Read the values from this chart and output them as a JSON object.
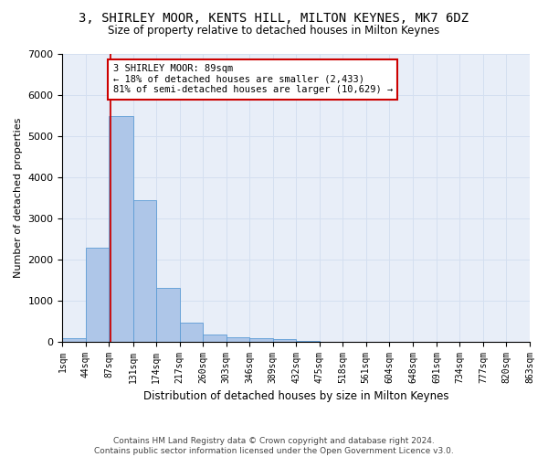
{
  "title": "3, SHIRLEY MOOR, KENTS HILL, MILTON KEYNES, MK7 6DZ",
  "subtitle": "Size of property relative to detached houses in Milton Keynes",
  "xlabel": "Distribution of detached houses by size in Milton Keynes",
  "ylabel": "Number of detached properties",
  "bar_color": "#aec6e8",
  "bar_edge_color": "#5b9bd5",
  "grid_color": "#d4dff0",
  "background_color": "#e8eef8",
  "bins": [
    1,
    44,
    87,
    131,
    174,
    217,
    260,
    303,
    346,
    389,
    432,
    475,
    518,
    561,
    604,
    648,
    691,
    734,
    777,
    820,
    863
  ],
  "values": [
    75,
    2280,
    5480,
    3450,
    1310,
    470,
    165,
    100,
    75,
    50,
    20,
    0,
    0,
    0,
    0,
    0,
    0,
    0,
    0,
    0
  ],
  "tick_labels": [
    "1sqm",
    "44sqm",
    "87sqm",
    "131sqm",
    "174sqm",
    "217sqm",
    "260sqm",
    "303sqm",
    "346sqm",
    "389sqm",
    "432sqm",
    "475sqm",
    "518sqm",
    "561sqm",
    "604sqm",
    "648sqm",
    "691sqm",
    "734sqm",
    "777sqm",
    "820sqm",
    "863sqm"
  ],
  "vline_x": 89,
  "vline_color": "#cc0000",
  "annotation_text": "3 SHIRLEY MOOR: 89sqm\n← 18% of detached houses are smaller (2,433)\n81% of semi-detached houses are larger (10,629) →",
  "annotation_box_color": "#ffffff",
  "annotation_box_edge": "#cc0000",
  "footer_text": "Contains HM Land Registry data © Crown copyright and database right 2024.\nContains public sector information licensed under the Open Government Licence v3.0.",
  "ylim": [
    0,
    7000
  ],
  "yticks": [
    0,
    1000,
    2000,
    3000,
    4000,
    5000,
    6000,
    7000
  ],
  "figsize": [
    6.0,
    5.0
  ],
  "dpi": 100,
  "title_fontsize": 10,
  "subtitle_fontsize": 8.5,
  "xlabel_fontsize": 8.5,
  "ylabel_fontsize": 8,
  "tick_fontsize": 7,
  "footer_fontsize": 6.5,
  "annotation_fontsize": 7.5
}
